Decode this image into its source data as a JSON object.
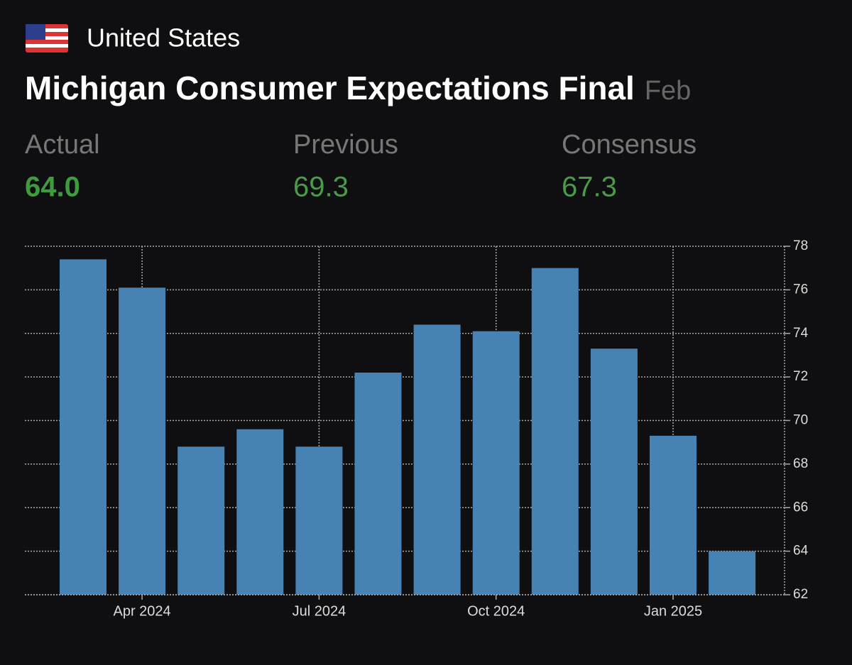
{
  "header": {
    "country": "United States",
    "title": "Michigan Consumer Expectations Final",
    "period": "Feb"
  },
  "stats": [
    {
      "label": "Actual",
      "value": "64.0"
    },
    {
      "label": "Previous",
      "value": "69.3"
    },
    {
      "label": "Consensus",
      "value": "67.3"
    }
  ],
  "chart_data": {
    "type": "bar",
    "categories": [
      null,
      "Apr 2024",
      null,
      null,
      "Jul 2024",
      null,
      null,
      "Oct 2024",
      null,
      null,
      "Jan 2025",
      null
    ],
    "values": [
      77.4,
      76.1,
      68.8,
      69.6,
      68.8,
      72.2,
      74.4,
      74.1,
      77.0,
      73.3,
      69.3,
      64.0
    ],
    "color": "#4682b4",
    "ylim": [
      62,
      78
    ],
    "yticks": [
      62,
      64,
      66,
      68,
      70,
      72,
      74,
      76,
      78
    ],
    "grid": true
  }
}
